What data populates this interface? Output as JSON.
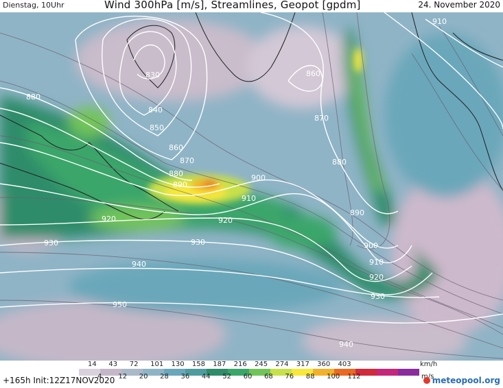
{
  "header": {
    "valid_day": "Dienstag, 10Uhr",
    "title": "Wind 300hPa [m/s], Streamlines, Geopot [gpdm]",
    "date": "24. November 2020"
  },
  "contour_labels": [
    "830",
    "840",
    "850",
    "860",
    "870",
    "880",
    "880",
    "890",
    "900",
    "910",
    "920",
    "920",
    "930",
    "930",
    "940",
    "950",
    "880",
    "870",
    "860",
    "890",
    "900",
    "910",
    "920",
    "930",
    "940",
    "910"
  ],
  "legend": {
    "kmh_label": "km/h",
    "ms_label": "m/s",
    "kmh_values": [
      "14",
      "43",
      "72",
      "101",
      "130",
      "158",
      "187",
      "216",
      "245",
      "274",
      "317",
      "360",
      "403"
    ],
    "ms_values": [
      "4",
      "12",
      "20",
      "28",
      "36",
      "44",
      "52",
      "60",
      "68",
      "76",
      "88",
      "100",
      "112"
    ],
    "colors": [
      "#d9d2dc",
      "#c4b8c8",
      "#aab9c8",
      "#8fb4c6",
      "#6aa7ba",
      "#4f9b9e",
      "#2e8c6a",
      "#3aa66a",
      "#72c45a",
      "#c8e04a",
      "#f7e83a",
      "#f2b12a",
      "#ea6a22",
      "#d02a3c",
      "#c4287a",
      "#8a2c9c"
    ]
  },
  "footer": {
    "run_info": "+165h  Init:12Z17NOV2020",
    "logo": "meteopool.org"
  }
}
